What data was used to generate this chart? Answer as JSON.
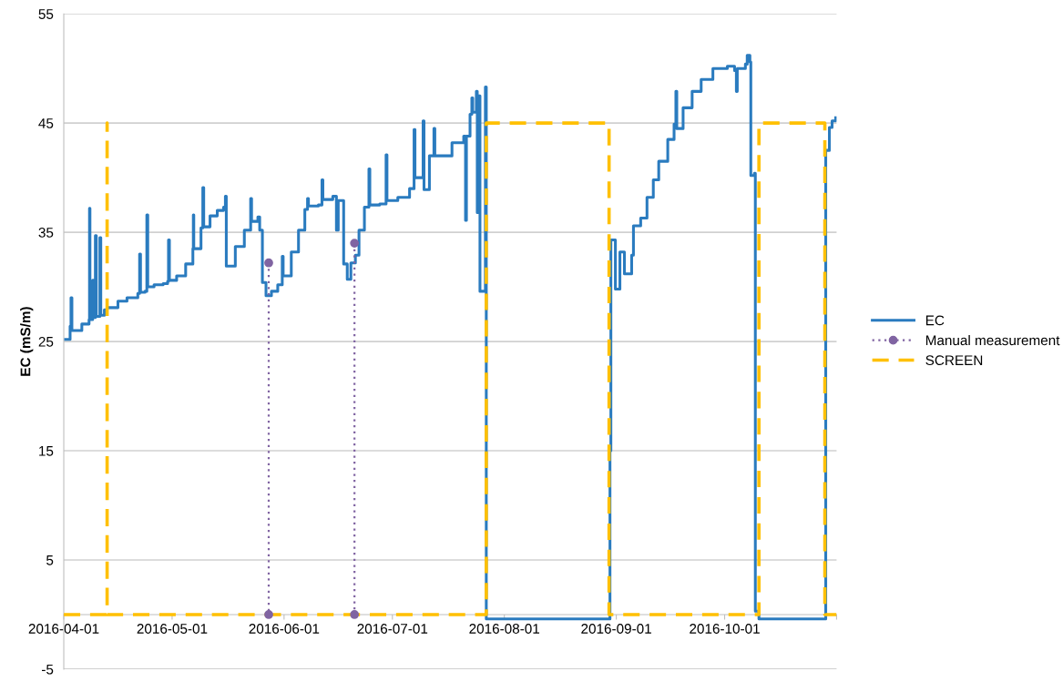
{
  "chart_data": {
    "type": "step",
    "ylabel": "EC (mS/m)",
    "xlim": [
      "2016-04-01",
      "2016-11-01"
    ],
    "xticks": [
      "2016-04-01",
      "2016-05-01",
      "2016-06-01",
      "2016-07-01",
      "2016-08-01",
      "2016-09-01",
      "2016-10-01",
      {
        "value": "2016-11-01",
        "label": null
      }
    ],
    "ylim": [
      -5,
      55
    ],
    "yticks": [
      -5,
      5,
      15,
      25,
      35,
      45,
      55
    ],
    "grid": "y",
    "legend": "right",
    "series": [
      {
        "name": "EC",
        "color": "#2a7bbf",
        "line_style": "solid",
        "marker": "none",
        "x": [
          "2016-04-01T12:00",
          "2016-04-02T18:00",
          "2016-04-03T00:00",
          "2016-04-03T06:00",
          "2016-04-06",
          "2016-04-08T00:00",
          "2016-04-08T03:00",
          "2016-04-08T06:00",
          "2016-04-09T00:00",
          "2016-04-09T06:00",
          "2016-04-09T18:00",
          "2016-04-10T00:00",
          "2016-04-11T00:00",
          "2016-04-11T06:00",
          "2016-04-12T06:00",
          "2016-04-13T00:00",
          "2016-04-16",
          "2016-04-18T12:00",
          "2016-04-21T12:00",
          "2016-04-22T00:00",
          "2016-04-22T06:00",
          "2016-04-23T12:00",
          "2016-04-24T00:00",
          "2016-04-24T06:00",
          "2016-04-26",
          "2016-04-28T12:00",
          "2016-04-29T18:00",
          "2016-04-30T00:00",
          "2016-04-30T06:00",
          "2016-05-02T06:00",
          "2016-05-04T18:00",
          "2016-05-06T18:00",
          "2016-05-06T21:00",
          "2016-05-07T00:00",
          "2016-05-09",
          "2016-05-09T12:00",
          "2016-05-09T18:00",
          "2016-05-11T12:00",
          "2016-05-13T12:00",
          "2016-05-15T06:00",
          "2016-05-15T18:00",
          "2016-05-16T00:00",
          "2016-05-18T12:00",
          "2016-05-21",
          "2016-05-22T18:00",
          "2016-05-23T00:00",
          "2016-05-24T18:00",
          "2016-05-25T06:00",
          "2016-05-26",
          "2016-05-27",
          "2016-05-28T12:00",
          "2016-05-30T06:00",
          "2016-05-31T12:00",
          "2016-05-31T18:00",
          "2016-06-03",
          "2016-06-05",
          "2016-06-06T18:00",
          "2016-06-07T12:00",
          "2016-06-07T18:00",
          "2016-06-10T12:00",
          "2016-06-11T12:00",
          "2016-06-11T18:00",
          "2016-06-14T12:00",
          "2016-06-15T12:00",
          "2016-06-16",
          "2016-06-17T12:00",
          "2016-06-18T12:00",
          "2016-06-19T12:00",
          "2016-06-20T18:00",
          "2016-06-21T18:00",
          "2016-06-23T06:00",
          "2016-06-24T12:00",
          "2016-06-24T18:00",
          "2016-06-27T12:00",
          "2016-06-29T06:00",
          "2016-06-29T12:00",
          "2016-07-02T12:00",
          "2016-07-05T18:00",
          "2016-07-07",
          "2016-07-07T06:00",
          "2016-07-09T12:00",
          "2016-07-09T18:00",
          "2016-07-11T06:00",
          "2016-07-12T12:00",
          "2016-07-12T18:00",
          "2016-07-17T12:00",
          "2016-07-20T18:00",
          "2016-07-21T06:00",
          "2016-07-21T12:00",
          "2016-07-22T12:00",
          "2016-07-23",
          "2016-07-23T06:00",
          "2016-07-24T06:00",
          "2016-07-24T12:00",
          "2016-07-24T18:00",
          "2016-07-25T06:00",
          "2016-07-26T18:00",
          "2016-07-27T00:00",
          "2016-08-30T00:00",
          "2016-08-30T06:00",
          "2016-08-30T12:00",
          "2016-08-31T18:00",
          "2016-09-02",
          "2016-09-03T06:00",
          "2016-09-05T06:00",
          "2016-09-05T18:00",
          "2016-09-07T18:00",
          "2016-09-09T12:00",
          "2016-09-11T06:00",
          "2016-09-12T18:00",
          "2016-09-15T06:00",
          "2016-09-17T00:00",
          "2016-09-17T12:00",
          "2016-09-17T18:00",
          "2016-09-19T12:00",
          "2016-09-22",
          "2016-09-24T12:00",
          "2016-09-27T18:00",
          "2016-10-01T18:00",
          "2016-10-03T18:00",
          "2016-10-04T06:00",
          "2016-10-04T12:00",
          "2016-10-06T18:00",
          "2016-10-07T06:00",
          "2016-10-08",
          "2016-10-08T06:00",
          "2016-10-09T06:00",
          "2016-10-09T12:00",
          "2016-10-10T12:00",
          "2016-10-28T18:00",
          "2016-10-29T00:00",
          "2016-10-30",
          "2016-10-30T18:00",
          "2016-10-31T18:00"
        ],
        "values": [
          25.2,
          26.4,
          29.0,
          26.0,
          26.6,
          27.0,
          37.2,
          27.0,
          30.6,
          27.2,
          34.7,
          27.3,
          34.5,
          27.4,
          27.9,
          28.1,
          28.7,
          29.0,
          29.4,
          33.0,
          29.5,
          29.6,
          36.6,
          30.0,
          30.2,
          30.3,
          30.5,
          34.3,
          30.6,
          31.0,
          32.1,
          33.5,
          36.6,
          33.5,
          35.4,
          39.1,
          35.5,
          36.5,
          37.0,
          37.3,
          38.3,
          31.9,
          33.7,
          35.2,
          38.1,
          36.0,
          36.4,
          35.2,
          30.4,
          29.2,
          29.6,
          30.2,
          32.8,
          31.0,
          33.2,
          35.2,
          37.1,
          38.1,
          37.4,
          37.5,
          39.8,
          38.0,
          38.3,
          35.2,
          37.9,
          32.1,
          30.7,
          32.2,
          32.9,
          35.2,
          37.3,
          40.8,
          37.5,
          37.6,
          42.1,
          37.9,
          38.2,
          39.0,
          44.4,
          40.0,
          45.2,
          38.9,
          42.0,
          44.5,
          42.0,
          43.2,
          43.8,
          36.1,
          43.8,
          45.8,
          47.3,
          46.0,
          47.9,
          36.8,
          47.5,
          29.6,
          48.3,
          -0.4,
          -0.4,
          15.0,
          34.3,
          29.8,
          33.2,
          31.2,
          32.9,
          35.6,
          36.3,
          38.2,
          39.8,
          41.5,
          43.5,
          44.9,
          47.9,
          44.5,
          46.4,
          47.9,
          49.0,
          50.0,
          50.2,
          49.8,
          47.9,
          50.0,
          50.4,
          51.2,
          50.6,
          40.2,
          40.4,
          0.3,
          -0.4,
          -0.4,
          42.5,
          44.6,
          45.2,
          45.5
        ]
      },
      {
        "name": "Manual measurement",
        "type": "line",
        "color": "#8064a2",
        "line_style": "dotted",
        "marker": "circle",
        "x": [
          "2016-05-27T18:00",
          "2016-05-27T18:00",
          "2016-06-09",
          "2016-06-20T12:00",
          "2016-06-20T12:00"
        ],
        "values": [
          32.2,
          0,
          null,
          34.0,
          0
        ]
      },
      {
        "name": "SCREEN",
        "type": "line",
        "color": "#ffc000",
        "line_style": "dashed",
        "marker": "none",
        "x": [
          "2016-04-01",
          "2016-04-13",
          "2016-04-13",
          "2016-04-13",
          "2016-07-27",
          "2016-07-27",
          "2016-08-30",
          "2016-08-30",
          "2016-10-10T12:00",
          "2016-10-10T12:00",
          "2016-10-28T18:00",
          "2016-10-28T18:00",
          "2016-11-01"
        ],
        "values": [
          0,
          0,
          45,
          0,
          0,
          45,
          45,
          0,
          0,
          45,
          45,
          0,
          0
        ]
      }
    ]
  }
}
